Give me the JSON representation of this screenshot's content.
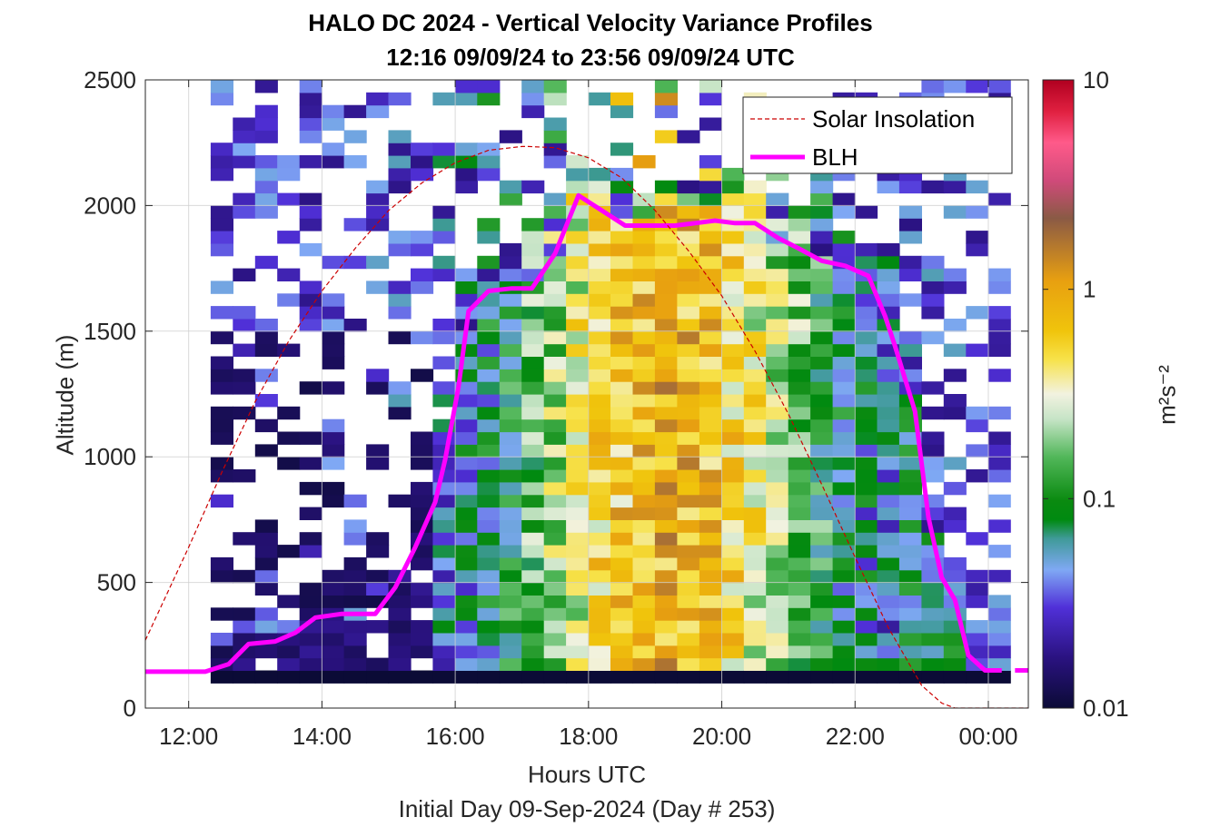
{
  "chart_data": {
    "type": "heatmap",
    "title": "HALO DC 2024 - Vertical Velocity Variance Profiles",
    "subtitle": "12:16 09/09/24 to 23:56 09/09/24  UTC",
    "xlabel": "Hours UTC",
    "x_note": "Initial Day 09-Sep-2024 (Day # 253)",
    "ylabel": "Altitude (m)",
    "xlim": [
      11.35,
      24.6
    ],
    "ylim": [
      0,
      2500
    ],
    "x_tick_values": [
      12,
      14,
      16,
      18,
      20,
      22,
      24
    ],
    "x_tick_labels": [
      "12:00",
      "14:00",
      "16:00",
      "18:00",
      "20:00",
      "22:00",
      "00:00"
    ],
    "y_ticks": [
      0,
      500,
      1000,
      1500,
      2000,
      2500
    ],
    "grid": true,
    "colorbar": {
      "label": "m²s⁻²",
      "scale": "log",
      "range": [
        0.01,
        10
      ],
      "tick_labels": [
        "0.01",
        "0.1",
        "1",
        "10"
      ],
      "tick_values": [
        0.01,
        0.1,
        1,
        10
      ]
    },
    "legend": {
      "position": "top-right",
      "entries": [
        {
          "name": "Solar Insolation",
          "color": "#cc0000",
          "style": "dashed"
        },
        {
          "name": "BLH",
          "color": "#ff00ff",
          "style": "solid"
        }
      ]
    },
    "series": [
      {
        "name": "BLH",
        "x": [
          11.35,
          12.25,
          12.6,
          12.9,
          13.3,
          13.6,
          13.9,
          14.3,
          14.8,
          15.1,
          15.4,
          15.7,
          15.85,
          16.05,
          16.2,
          16.5,
          16.85,
          17.15,
          17.5,
          17.85,
          18.2,
          18.55,
          18.9,
          19.3,
          19.6,
          19.9,
          20.2,
          20.5,
          20.85,
          21.15,
          21.5,
          21.85,
          22.2,
          22.45,
          22.6,
          22.9,
          23.1,
          23.3,
          23.5,
          23.7,
          23.95,
          24.2
        ],
        "y": [
          145,
          145,
          175,
          255,
          265,
          300,
          360,
          375,
          375,
          480,
          640,
          820,
          990,
          1280,
          1580,
          1660,
          1670,
          1670,
          1810,
          2040,
          1980,
          1920,
          1920,
          1920,
          1930,
          1940,
          1930,
          1930,
          1870,
          1830,
          1780,
          1760,
          1720,
          1560,
          1440,
          1180,
          760,
          520,
          430,
          210,
          150,
          150
        ]
      },
      {
        "name": "Solar Insolation",
        "x": [
          11.35,
          12.0,
          12.5,
          13.0,
          13.5,
          14.0,
          14.5,
          15.0,
          15.5,
          16.0,
          16.5,
          17.0,
          17.1,
          17.5,
          18.0,
          18.5,
          19.0,
          19.5,
          20.0,
          20.5,
          21.0,
          21.5,
          22.0,
          22.5,
          23.0,
          23.3,
          23.5,
          24.6
        ],
        "y": [
          270,
          640,
          940,
          1220,
          1460,
          1660,
          1830,
          1980,
          2090,
          2170,
          2220,
          2235,
          2235,
          2230,
          2190,
          2110,
          1980,
          1820,
          1640,
          1420,
          1170,
          890,
          600,
          320,
          90,
          20,
          0,
          0
        ]
      }
    ]
  }
}
